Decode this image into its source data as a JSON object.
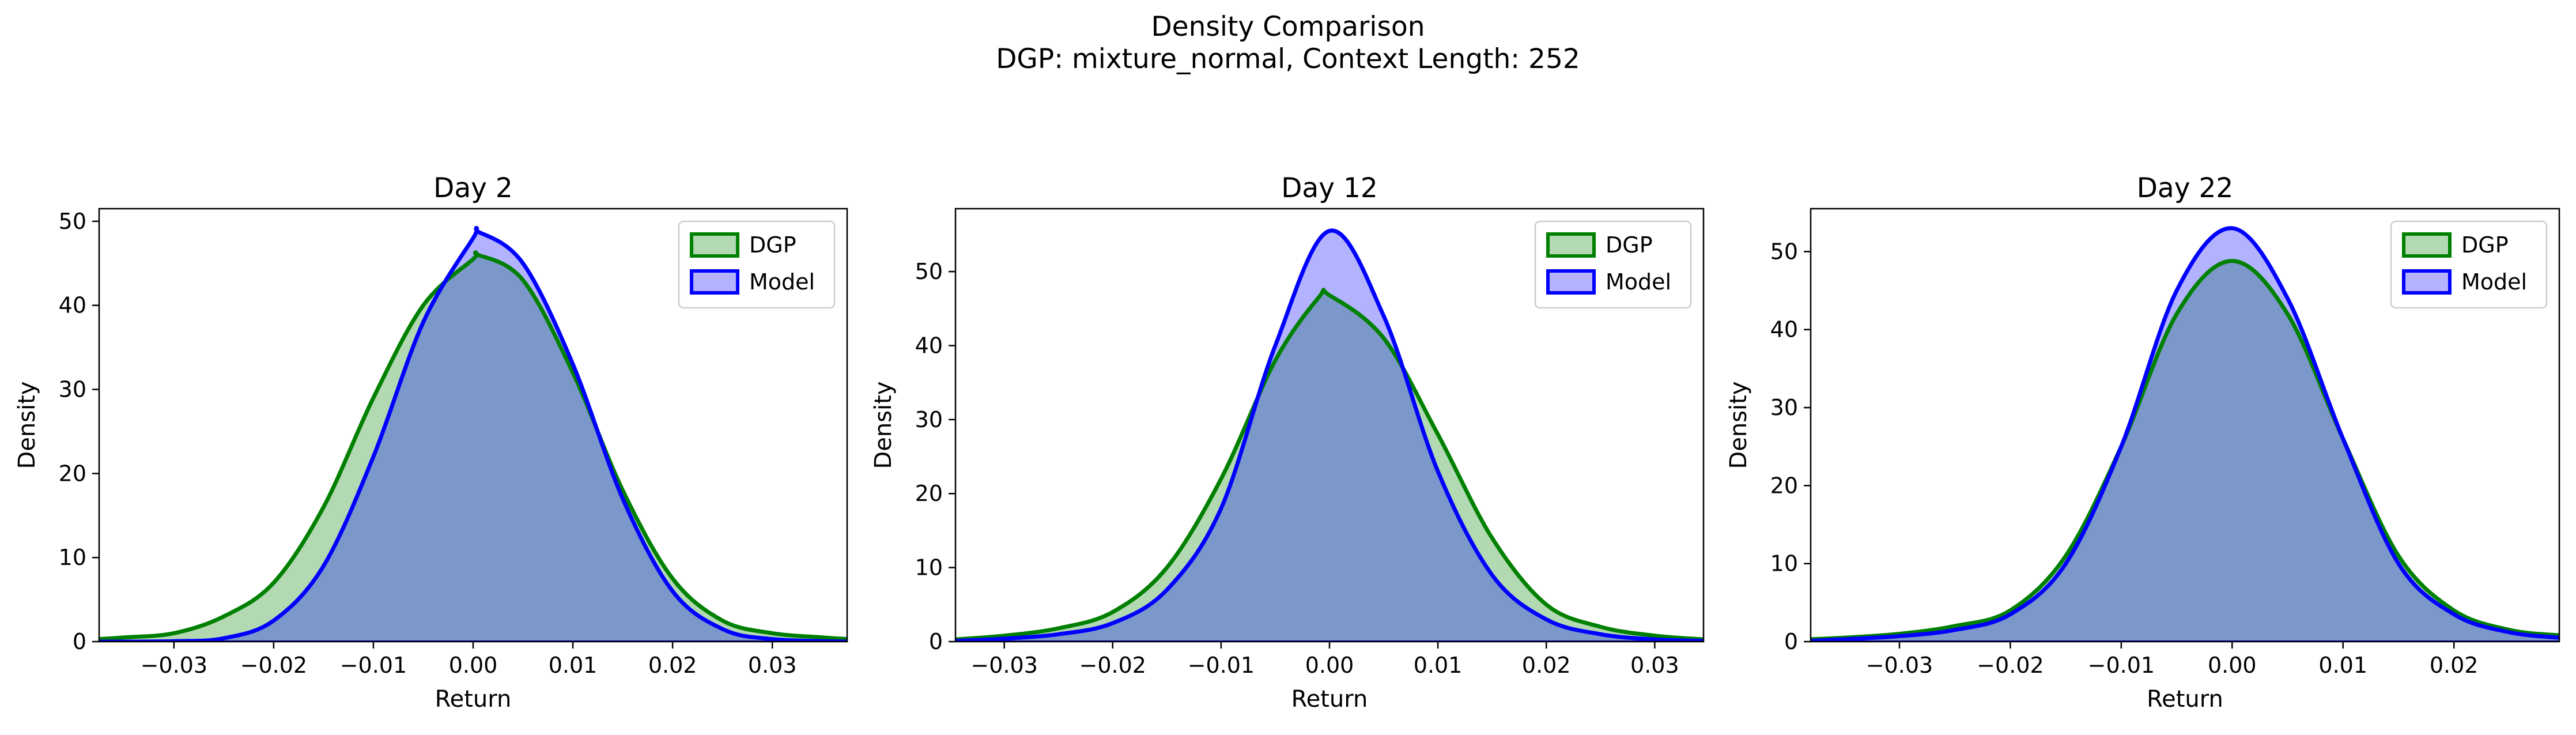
{
  "figure": {
    "title_line1": "Density Comparison",
    "title_line2": "DGP: mixture_normal, Context Length: 252"
  },
  "colors": {
    "dgp": "#008000",
    "model": "#0000ff",
    "dgp_fill": "rgba(0,128,0,0.3)",
    "model_fill": "rgba(0,0,255,0.3)"
  },
  "chart_data": [
    {
      "type": "area",
      "title": "Day 2",
      "xlabel": "Return",
      "ylabel": "Density",
      "xlim": [
        -0.0375,
        0.0375
      ],
      "ylim": [
        0,
        51.5
      ],
      "xticks": [
        -0.03,
        -0.02,
        -0.01,
        0.0,
        0.01,
        0.02,
        0.03
      ],
      "xtick_labels": [
        "−0.03",
        "−0.02",
        "−0.01",
        "0.00",
        "0.01",
        "0.02",
        "0.03"
      ],
      "yticks": [
        0,
        10,
        20,
        30,
        40,
        50
      ],
      "ytick_labels": [
        "0",
        "10",
        "20",
        "30",
        "40",
        "50"
      ],
      "legend_position": "top-right",
      "series": [
        {
          "name": "DGP",
          "x": [
            -0.0375,
            -0.035,
            -0.03,
            -0.025,
            -0.02,
            -0.015,
            -0.01,
            -0.005,
            0.0,
            0.0005,
            0.005,
            0.01,
            0.015,
            0.02,
            0.025,
            0.03,
            0.035,
            0.0375
          ],
          "y": [
            0.3,
            0.5,
            1.0,
            3.0,
            7.0,
            16.0,
            29.0,
            40.0,
            45.5,
            46.0,
            43.0,
            32.0,
            18.0,
            7.5,
            2.5,
            1.0,
            0.5,
            0.3
          ]
        },
        {
          "name": "Model",
          "x": [
            -0.0375,
            -0.03,
            -0.025,
            -0.02,
            -0.015,
            -0.01,
            -0.005,
            0.0,
            0.0006,
            0.005,
            0.01,
            0.015,
            0.02,
            0.025,
            0.03,
            0.0375
          ],
          "y": [
            0.0,
            0.05,
            0.4,
            2.5,
            9.0,
            22.0,
            38.0,
            48.0,
            48.7,
            45.0,
            33.0,
            17.0,
            6.0,
            1.5,
            0.3,
            0.0
          ]
        }
      ]
    },
    {
      "type": "area",
      "title": "Day 12",
      "xlabel": "Return",
      "ylabel": "Density",
      "xlim": [
        -0.0345,
        0.0345
      ],
      "ylim": [
        0,
        58.5
      ],
      "xticks": [
        -0.03,
        -0.02,
        -0.01,
        0.0,
        0.01,
        0.02,
        0.03
      ],
      "xtick_labels": [
        "−0.03",
        "−0.02",
        "−0.01",
        "0.00",
        "0.01",
        "0.02",
        "0.03"
      ],
      "yticks": [
        0,
        10,
        20,
        30,
        40,
        50
      ],
      "ytick_labels": [
        "0",
        "10",
        "20",
        "30",
        "40",
        "50"
      ],
      "legend_position": "top-right",
      "series": [
        {
          "name": "DGP",
          "x": [
            -0.0345,
            -0.03,
            -0.025,
            -0.02,
            -0.015,
            -0.01,
            -0.005,
            -0.001,
            0.0,
            0.005,
            0.01,
            0.015,
            0.02,
            0.025,
            0.03,
            0.0345
          ],
          "y": [
            0.3,
            0.8,
            1.8,
            4.0,
            10.0,
            22.0,
            38.0,
            46.5,
            46.8,
            41.0,
            28.0,
            14.0,
            5.0,
            2.0,
            0.8,
            0.3
          ]
        },
        {
          "name": "Model",
          "x": [
            -0.0345,
            -0.03,
            -0.025,
            -0.02,
            -0.015,
            -0.01,
            -0.005,
            0.0,
            0.005,
            0.01,
            0.015,
            0.02,
            0.025,
            0.03,
            0.0345
          ],
          "y": [
            0.1,
            0.4,
            1.0,
            2.5,
            7.0,
            18.0,
            40.0,
            55.5,
            44.0,
            23.0,
            9.0,
            3.0,
            1.0,
            0.3,
            0.1
          ]
        }
      ]
    },
    {
      "type": "area",
      "title": "Day 22",
      "xlabel": "Return",
      "ylabel": "Density",
      "xlim": [
        -0.038,
        0.0295
      ],
      "ylim": [
        0,
        55.5
      ],
      "xticks": [
        -0.03,
        -0.02,
        -0.01,
        0.0,
        0.01,
        0.02
      ],
      "xtick_labels": [
        "−0.03",
        "−0.02",
        "−0.01",
        "0.00",
        "0.01",
        "0.02"
      ],
      "yticks": [
        0,
        10,
        20,
        30,
        40,
        50
      ],
      "ytick_labels": [
        "0",
        "10",
        "20",
        "30",
        "40",
        "50"
      ],
      "legend_position": "top-right",
      "series": [
        {
          "name": "DGP",
          "x": [
            -0.038,
            -0.035,
            -0.03,
            -0.025,
            -0.02,
            -0.015,
            -0.01,
            -0.005,
            0.0,
            0.005,
            0.01,
            0.015,
            0.02,
            0.025,
            0.0295
          ],
          "y": [
            0.3,
            0.5,
            1.0,
            2.0,
            4.0,
            11.0,
            25.0,
            42.0,
            48.8,
            42.0,
            26.0,
            11.0,
            4.0,
            1.5,
            0.8
          ]
        },
        {
          "name": "Model",
          "x": [
            -0.038,
            -0.035,
            -0.03,
            -0.025,
            -0.02,
            -0.015,
            -0.01,
            -0.005,
            0.0,
            0.005,
            0.01,
            0.015,
            0.02,
            0.025,
            0.0295
          ],
          "y": [
            0.1,
            0.3,
            0.7,
            1.5,
            3.5,
            10.0,
            25.0,
            45.0,
            53.0,
            44.0,
            26.0,
            10.0,
            3.5,
            1.2,
            0.5
          ]
        }
      ]
    }
  ]
}
